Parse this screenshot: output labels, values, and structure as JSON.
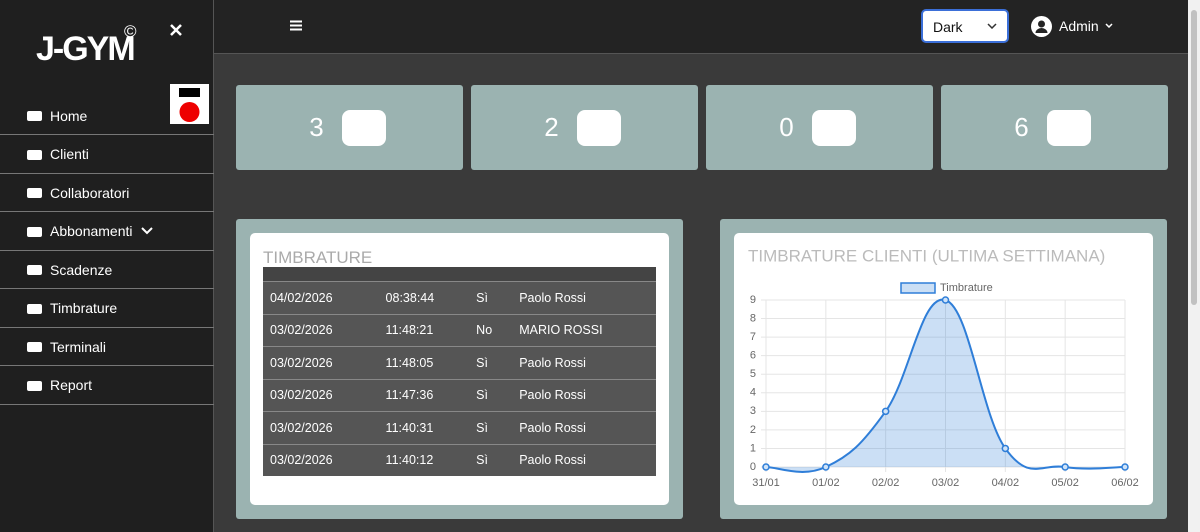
{
  "sidebar": {
    "logo": "J-GYM",
    "logo_mark": "©",
    "nav": [
      "Home",
      "Clienti",
      "Collaboratori",
      "Abbonamenti",
      "Scadenze",
      "Timbrature",
      "Terminali",
      "Report"
    ]
  },
  "topbar": {
    "theme": "Dark",
    "user": "Admin"
  },
  "stats": [
    3,
    2,
    0,
    6
  ],
  "table": {
    "title": "TIMBRATURE",
    "rows": [
      [
        "04/02/2026",
        "08:38:44",
        "Sì",
        "Paolo Rossi"
      ],
      [
        "03/02/2026",
        "11:48:21",
        "No",
        "MARIO ROSSI"
      ],
      [
        "03/02/2026",
        "11:48:05",
        "Sì",
        "Paolo Rossi"
      ],
      [
        "03/02/2026",
        "11:47:36",
        "Sì",
        "Paolo Rossi"
      ],
      [
        "03/02/2026",
        "11:40:31",
        "Sì",
        "Paolo Rossi"
      ],
      [
        "03/02/2026",
        "11:40:12",
        "Sì",
        "Paolo Rossi"
      ]
    ]
  },
  "chart_data": {
    "type": "line",
    "title": "TIMBRATURE CLIENTI (ULTIMA SETTIMANA)",
    "categories": [
      "31/01",
      "01/02",
      "02/02",
      "03/02",
      "04/02",
      "05/02",
      "06/02"
    ],
    "series": [
      {
        "name": "Timbrature",
        "color": "#2f7ed8",
        "values": [
          0,
          0,
          3,
          9,
          1,
          0,
          0
        ]
      }
    ],
    "ylim": [
      0,
      9
    ],
    "yticks": [
      0,
      1,
      2,
      3,
      4,
      5,
      6,
      7,
      8,
      9
    ],
    "grid": true
  }
}
